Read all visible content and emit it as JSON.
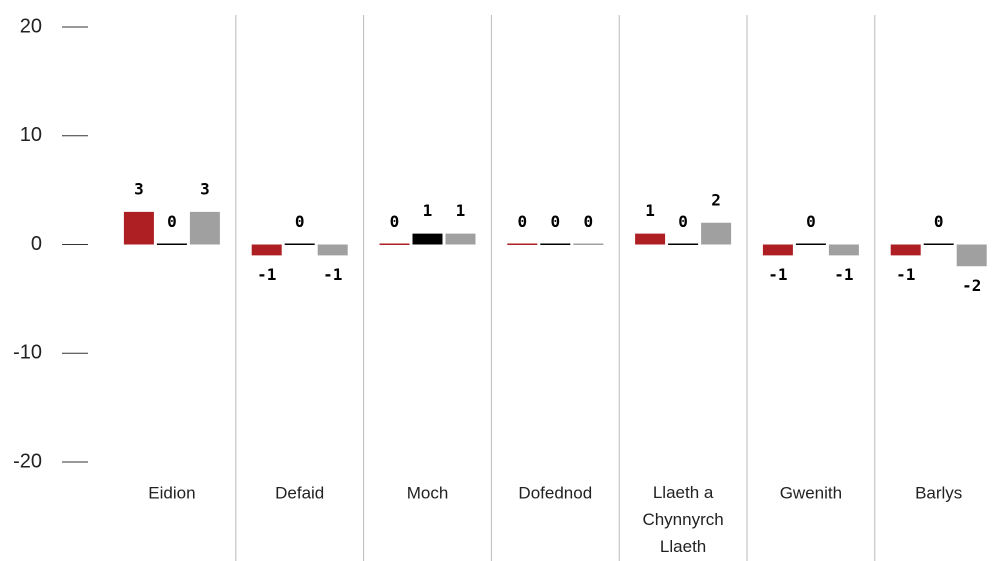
{
  "chart_data": {
    "type": "bar",
    "categories": [
      "Eidion",
      "Defaid",
      "Moch",
      "Dofednod",
      "Llaeth a Chynnyrch Llaeth",
      "Gwenith",
      "Barlys"
    ],
    "series": [
      {
        "color": "#ad1f23",
        "values": [
          3,
          -1,
          0,
          0,
          1,
          -1,
          -1
        ]
      },
      {
        "color": "#000000",
        "values": [
          0,
          0,
          1,
          0,
          0,
          0,
          0
        ]
      },
      {
        "color": "#a0a0a0",
        "values": [
          3,
          -1,
          1,
          0,
          2,
          -1,
          -2
        ]
      }
    ],
    "ylim": [
      -20,
      20
    ],
    "yticks": [
      -20,
      -10,
      0,
      10,
      20
    ],
    "grid": false
  }
}
